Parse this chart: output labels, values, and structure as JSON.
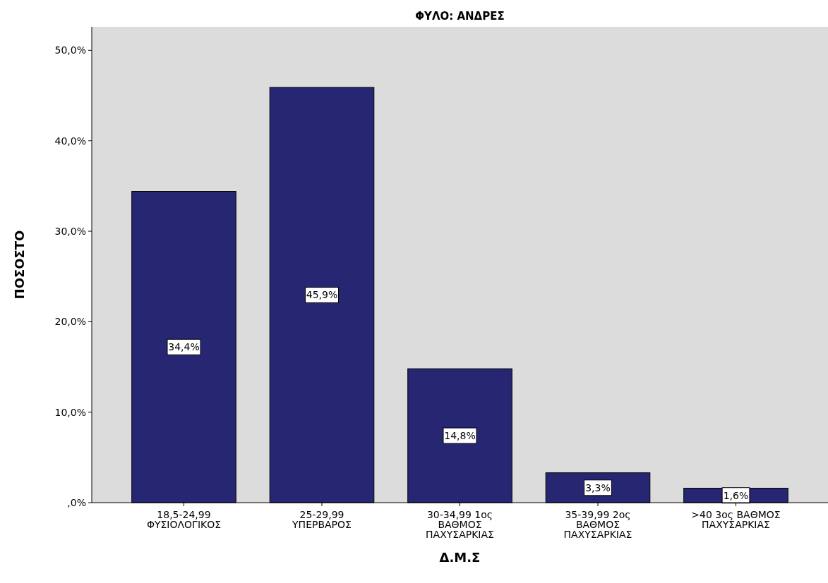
{
  "chart_data": {
    "type": "bar",
    "title": "ΦΥΛΟ: ΑΝΔΡΕΣ",
    "xlabel": "Δ.Μ.Σ",
    "ylabel": "ΠΟΣΟΣΤΟ",
    "categories": [
      "18,5-24,99\nΦΥΣΙΟΛΟΓΙΚΟΣ",
      "25-29,99\nΥΠΕΡΒΑΡΟΣ",
      "30-34,99 1ος\nΒΑΘΜΟΣ\nΠΑΧΥΣΑΡΚΙΑΣ",
      "35-39,99 2ος\nΒΑΘΜΟΣ\nΠΑΧΥΣΑΡΚΙΑΣ",
      ">40 3ος ΒΑΘΜΟΣ\nΠΑΧΥΣΑΡΚΙΑΣ"
    ],
    "values": [
      34.4,
      45.9,
      14.8,
      3.3,
      1.6
    ],
    "color": "#262673",
    "ylim": [
      0,
      52.6
    ],
    "yticks": [
      {
        "value": 0,
        "label": ",0%"
      },
      {
        "value": 10,
        "label": "10,0%"
      },
      {
        "value": 20,
        "label": "20,0%"
      },
      {
        "value": 30,
        "label": "30,0%"
      },
      {
        "value": 40,
        "label": "40,0%"
      },
      {
        "value": 50,
        "label": "50,0%"
      }
    ],
    "value_labels": [
      "34,4%",
      "45,9%",
      "14,8%",
      "3,3%",
      "1,6%"
    ],
    "grid": false
  }
}
